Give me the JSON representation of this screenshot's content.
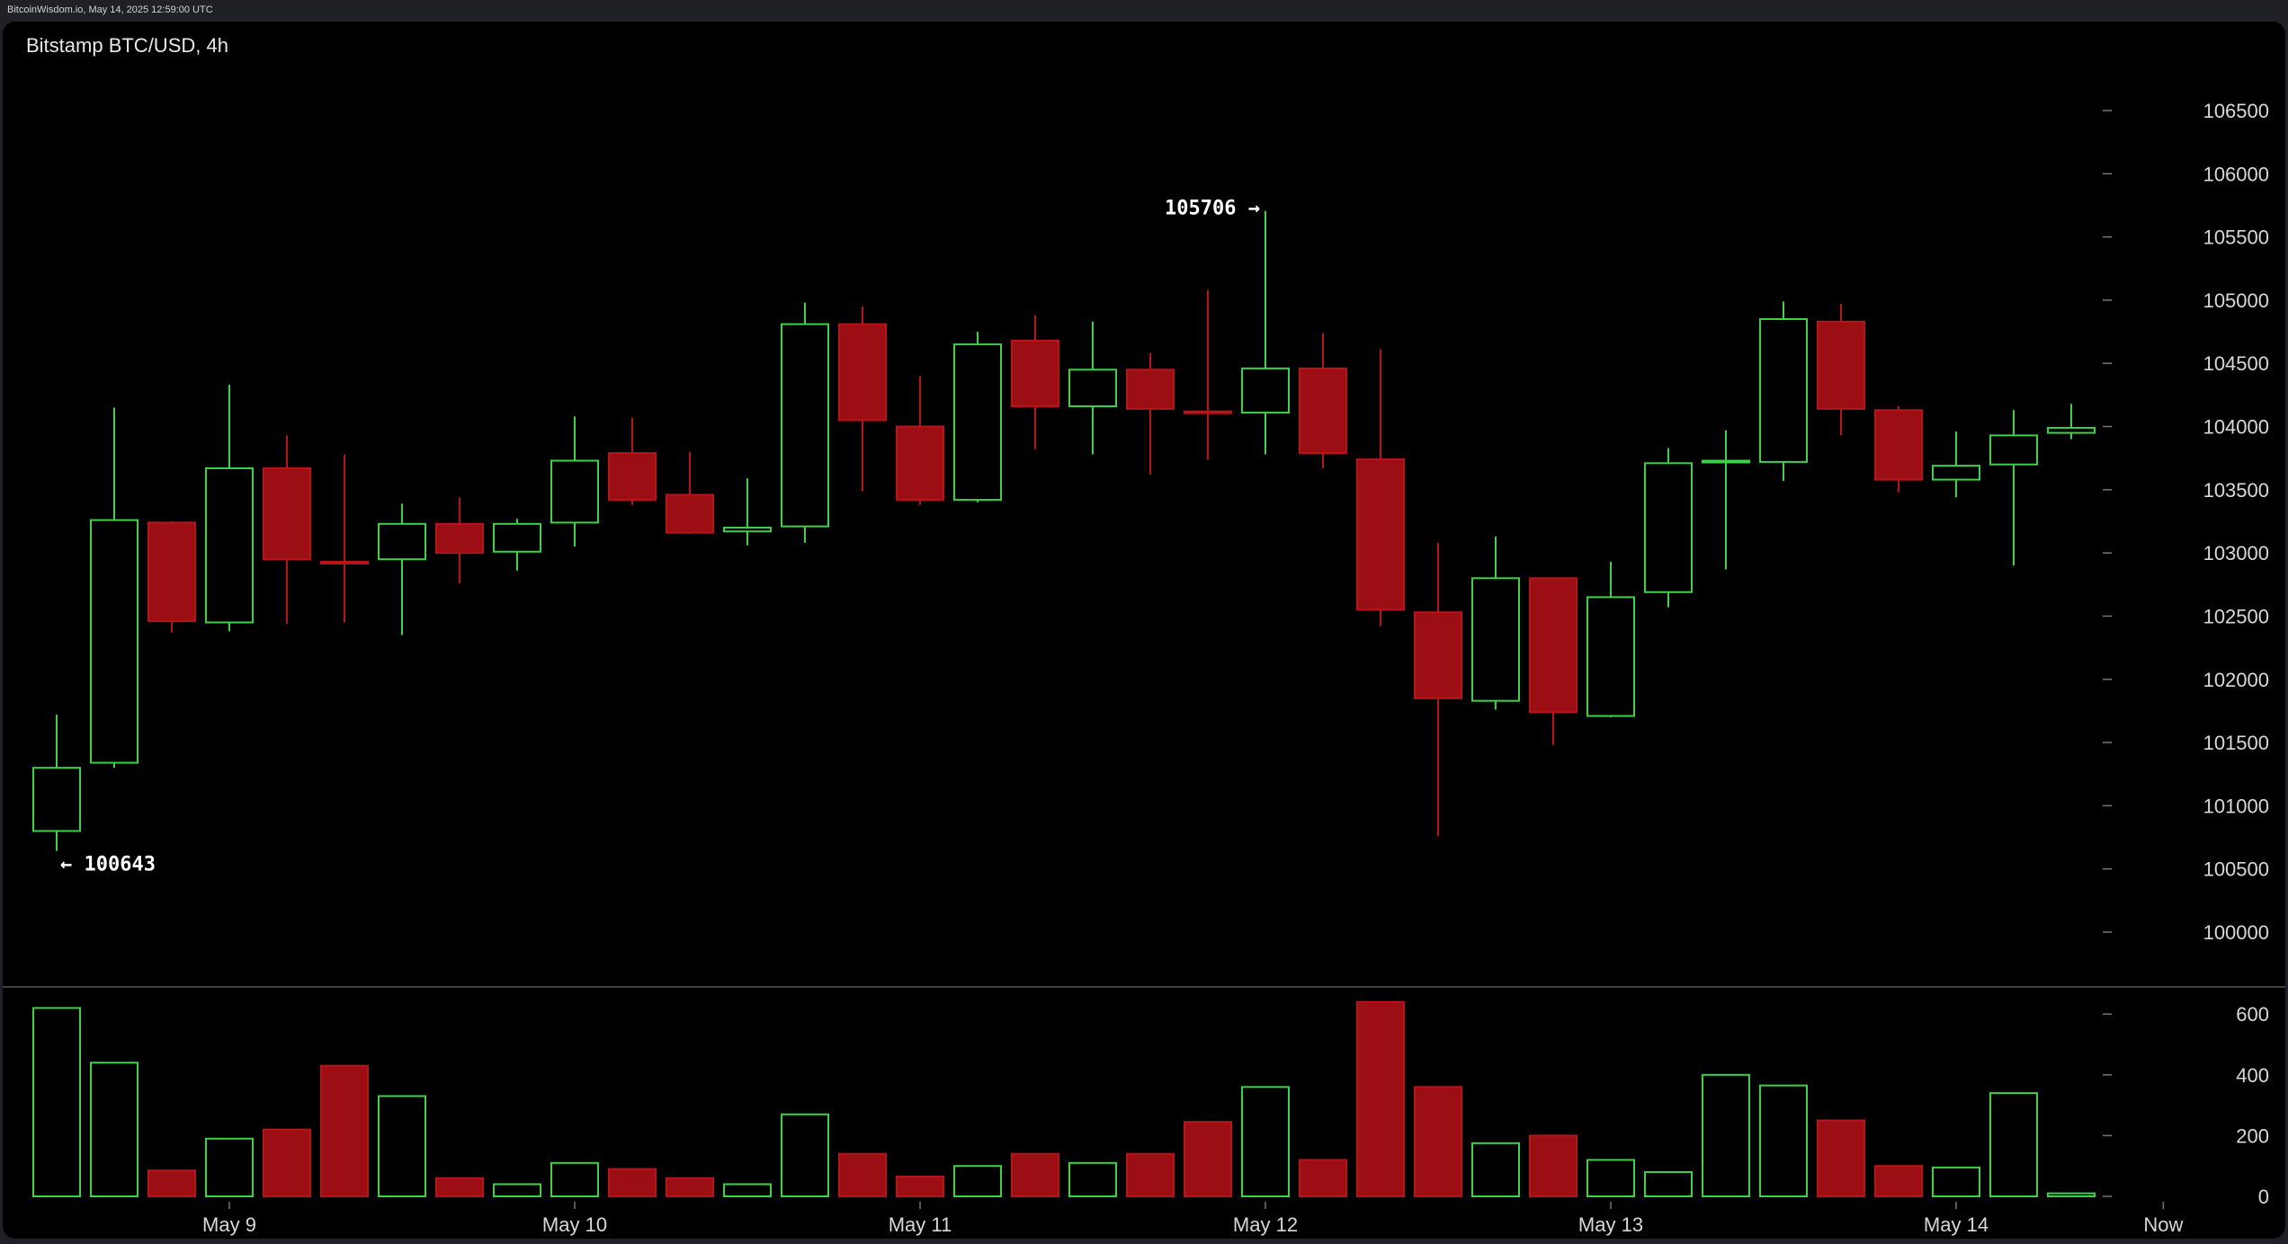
{
  "header": {
    "source": "BitcoinWisdom.io, May 14, 2025 12:59:00 UTC"
  },
  "chart_data": {
    "type": "candlestick",
    "title": "Bitstamp BTC/USD, 4h",
    "price_ylim": [
      99200,
      107000
    ],
    "price_ticks": [
      100000,
      100500,
      101000,
      101500,
      102000,
      102500,
      103000,
      103500,
      104000,
      104500,
      105000,
      105500,
      106000,
      106500
    ],
    "volume_ticks": [
      0,
      200,
      400,
      600
    ],
    "x_labels": [
      {
        "label": "May 9",
        "index": 3
      },
      {
        "label": "May 10",
        "index": 9
      },
      {
        "label": "May 11",
        "index": 15
      },
      {
        "label": "May 12",
        "index": 21
      },
      {
        "label": "May 13",
        "index": 27
      },
      {
        "label": "May 14",
        "index": 33
      },
      {
        "label": "Now",
        "index": 36.6
      }
    ],
    "annotations": [
      {
        "text": "105706 →",
        "value": 105706,
        "index": 21,
        "side": "left"
      },
      {
        "text": "← 100643",
        "value": 100643,
        "index": 0,
        "side": "right"
      }
    ],
    "candles": [
      {
        "o": 100800,
        "h": 101720,
        "l": 100643,
        "c": 101300,
        "v": 620
      },
      {
        "o": 101340,
        "h": 104150,
        "l": 101300,
        "c": 103260,
        "v": 440
      },
      {
        "o": 103240,
        "h": 103250,
        "l": 102370,
        "c": 102460,
        "v": 85
      },
      {
        "o": 102450,
        "h": 104330,
        "l": 102380,
        "c": 103670,
        "v": 190
      },
      {
        "o": 103670,
        "h": 103930,
        "l": 102440,
        "c": 102950,
        "v": 220
      },
      {
        "o": 102930,
        "h": 103780,
        "l": 102450,
        "c": 102920,
        "v": 430
      },
      {
        "o": 102950,
        "h": 103390,
        "l": 102350,
        "c": 103230,
        "v": 330
      },
      {
        "o": 103230,
        "h": 103440,
        "l": 102760,
        "c": 103000,
        "v": 60
      },
      {
        "o": 103010,
        "h": 103270,
        "l": 102860,
        "c": 103230,
        "v": 40
      },
      {
        "o": 103240,
        "h": 104080,
        "l": 103050,
        "c": 103730,
        "v": 110
      },
      {
        "o": 103790,
        "h": 104070,
        "l": 103380,
        "c": 103420,
        "v": 90
      },
      {
        "o": 103460,
        "h": 103800,
        "l": 103150,
        "c": 103160,
        "v": 60
      },
      {
        "o": 103170,
        "h": 103590,
        "l": 103060,
        "c": 103200,
        "v": 40
      },
      {
        "o": 103210,
        "h": 104980,
        "l": 103080,
        "c": 104810,
        "v": 270
      },
      {
        "o": 104810,
        "h": 104950,
        "l": 103490,
        "c": 104050,
        "v": 140
      },
      {
        "o": 104000,
        "h": 104400,
        "l": 103380,
        "c": 103420,
        "v": 65
      },
      {
        "o": 103420,
        "h": 104750,
        "l": 103400,
        "c": 104650,
        "v": 100
      },
      {
        "o": 104680,
        "h": 104880,
        "l": 103820,
        "c": 104160,
        "v": 140
      },
      {
        "o": 104160,
        "h": 104830,
        "l": 103780,
        "c": 104450,
        "v": 110
      },
      {
        "o": 104450,
        "h": 104580,
        "l": 103620,
        "c": 104140,
        "v": 140
      },
      {
        "o": 104120,
        "h": 105080,
        "l": 103740,
        "c": 104110,
        "v": 245
      },
      {
        "o": 104110,
        "h": 105706,
        "l": 103780,
        "c": 104460,
        "v": 360
      },
      {
        "o": 104460,
        "h": 104740,
        "l": 103670,
        "c": 103790,
        "v": 120
      },
      {
        "o": 103740,
        "h": 104610,
        "l": 102420,
        "c": 102550,
        "v": 640
      },
      {
        "o": 102530,
        "h": 103080,
        "l": 100760,
        "c": 101850,
        "v": 360
      },
      {
        "o": 101830,
        "h": 103130,
        "l": 101760,
        "c": 102800,
        "v": 175
      },
      {
        "o": 102800,
        "h": 102780,
        "l": 101480,
        "c": 101740,
        "v": 200
      },
      {
        "o": 101710,
        "h": 102930,
        "l": 101700,
        "c": 102650,
        "v": 120
      },
      {
        "o": 102690,
        "h": 103830,
        "l": 102570,
        "c": 103710,
        "v": 80
      },
      {
        "o": 103730,
        "h": 103970,
        "l": 102870,
        "c": 103730,
        "v": 400
      },
      {
        "o": 103720,
        "h": 104990,
        "l": 103570,
        "c": 104850,
        "v": 365
      },
      {
        "o": 104830,
        "h": 104970,
        "l": 103930,
        "c": 104140,
        "v": 250
      },
      {
        "o": 104130,
        "h": 104160,
        "l": 103480,
        "c": 103580,
        "v": 100
      },
      {
        "o": 103580,
        "h": 103960,
        "l": 103440,
        "c": 103690,
        "v": 95
      },
      {
        "o": 103700,
        "h": 104130,
        "l": 102900,
        "c": 103930,
        "v": 340
      },
      {
        "o": 103950,
        "h": 104180,
        "l": 103900,
        "c": 103990,
        "v": 10
      }
    ]
  }
}
